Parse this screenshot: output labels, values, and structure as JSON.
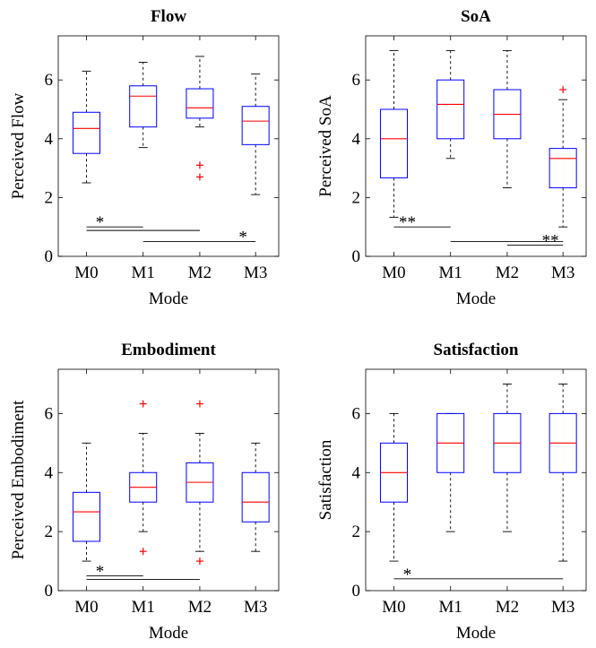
{
  "chart_data": [
    {
      "type": "box",
      "title": "Flow",
      "xlabel": "Mode",
      "ylabel": "Perceived Flow",
      "ylim": [
        0,
        7.5
      ],
      "yticks": [
        0,
        2,
        4,
        6
      ],
      "categories": [
        "M0",
        "M1",
        "M2",
        "M3"
      ],
      "boxes": [
        {
          "whisker_low": 2.5,
          "q1": 3.5,
          "median": 4.35,
          "q3": 4.9,
          "whisker_high": 6.3,
          "outliers": []
        },
        {
          "whisker_low": 3.7,
          "q1": 4.4,
          "median": 5.45,
          "q3": 5.8,
          "whisker_high": 6.6,
          "outliers": []
        },
        {
          "whisker_low": 4.4,
          "q1": 4.7,
          "median": 5.05,
          "q3": 5.7,
          "whisker_high": 6.8,
          "outliers": [
            3.1,
            2.7
          ]
        },
        {
          "whisker_low": 2.1,
          "q1": 3.8,
          "median": 4.6,
          "q3": 5.1,
          "whisker_high": 6.2,
          "outliers": []
        }
      ],
      "significance": [
        {
          "from": "M0",
          "to": "M1",
          "y": 1.0,
          "label": "*"
        },
        {
          "from": "M0",
          "to": "M2",
          "y": 0.88,
          "label": ""
        },
        {
          "from": "M1",
          "to": "M3",
          "y": 0.5,
          "label": "*"
        }
      ]
    },
    {
      "type": "box",
      "title": "SoA",
      "xlabel": "Mode",
      "ylabel": "Perceived SoA",
      "ylim": [
        0,
        7.5
      ],
      "yticks": [
        0,
        2,
        4,
        6
      ],
      "categories": [
        "M0",
        "M1",
        "M2",
        "M3"
      ],
      "boxes": [
        {
          "whisker_low": 1.33,
          "q1": 2.67,
          "median": 4.0,
          "q3": 5.0,
          "whisker_high": 7.0,
          "outliers": []
        },
        {
          "whisker_low": 3.33,
          "q1": 4.0,
          "median": 5.17,
          "q3": 6.0,
          "whisker_high": 7.0,
          "outliers": []
        },
        {
          "whisker_low": 2.33,
          "q1": 4.0,
          "median": 4.83,
          "q3": 5.67,
          "whisker_high": 7.0,
          "outliers": []
        },
        {
          "whisker_low": 1.0,
          "q1": 2.33,
          "median": 3.33,
          "q3": 3.67,
          "whisker_high": 5.33,
          "outliers": [
            5.67
          ]
        }
      ],
      "significance": [
        {
          "from": "M0",
          "to": "M1",
          "y": 1.0,
          "label": "**"
        },
        {
          "from": "M1",
          "to": "M3",
          "y": 0.5,
          "label": ""
        },
        {
          "from": "M2",
          "to": "M3",
          "y": 0.38,
          "label": "**"
        }
      ]
    },
    {
      "type": "box",
      "title": "Embodiment",
      "xlabel": "Mode",
      "ylabel": "Perceived Embodiment",
      "ylim": [
        0,
        7.5
      ],
      "yticks": [
        0,
        2,
        4,
        6
      ],
      "categories": [
        "M0",
        "M1",
        "M2",
        "M3"
      ],
      "boxes": [
        {
          "whisker_low": 1.0,
          "q1": 1.67,
          "median": 2.67,
          "q3": 3.33,
          "whisker_high": 5.0,
          "outliers": []
        },
        {
          "whisker_low": 2.0,
          "q1": 3.0,
          "median": 3.5,
          "q3": 4.0,
          "whisker_high": 5.33,
          "outliers": [
            6.33,
            1.33
          ]
        },
        {
          "whisker_low": 1.33,
          "q1": 3.0,
          "median": 3.67,
          "q3": 4.33,
          "whisker_high": 5.33,
          "outliers": [
            6.33,
            1.0
          ]
        },
        {
          "whisker_low": 1.33,
          "q1": 2.33,
          "median": 3.0,
          "q3": 4.0,
          "whisker_high": 5.0,
          "outliers": []
        }
      ],
      "significance": [
        {
          "from": "M0",
          "to": "M1",
          "y": 0.5,
          "label": "*"
        },
        {
          "from": "M0",
          "to": "M2",
          "y": 0.38,
          "label": ""
        }
      ]
    },
    {
      "type": "box",
      "title": "Satisfaction",
      "xlabel": "Mode",
      "ylabel": "Satisfaction",
      "ylim": [
        0,
        7.5
      ],
      "yticks": [
        0,
        2,
        4,
        6
      ],
      "categories": [
        "M0",
        "M1",
        "M2",
        "M3"
      ],
      "boxes": [
        {
          "whisker_low": 1.0,
          "q1": 3.0,
          "median": 4.0,
          "q3": 5.0,
          "whisker_high": 6.0,
          "outliers": []
        },
        {
          "whisker_low": 2.0,
          "q1": 4.0,
          "median": 5.0,
          "q3": 6.0,
          "whisker_high": 6.0,
          "outliers": []
        },
        {
          "whisker_low": 2.0,
          "q1": 4.0,
          "median": 5.0,
          "q3": 6.0,
          "whisker_high": 7.0,
          "outliers": []
        },
        {
          "whisker_low": 1.0,
          "q1": 4.0,
          "median": 5.0,
          "q3": 6.0,
          "whisker_high": 7.0,
          "outliers": []
        }
      ],
      "significance": [
        {
          "from": "M0",
          "to": "M3",
          "y": 0.4,
          "label": "*"
        }
      ]
    }
  ],
  "colors": {
    "box": "#0000ff",
    "median": "#ff0000",
    "outlier": "#ff0000",
    "whisker": "#000000",
    "significance": "#000000"
  }
}
